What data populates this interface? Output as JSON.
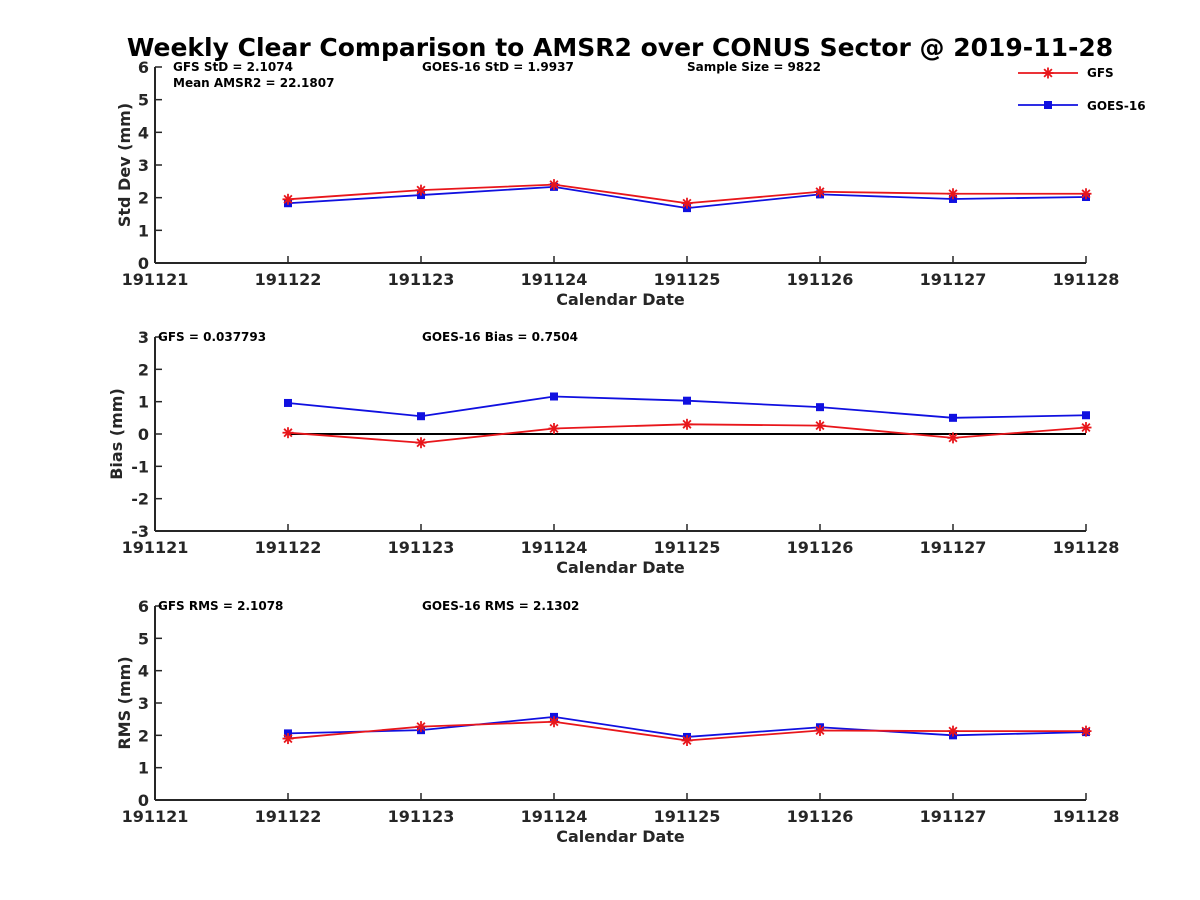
{
  "title": "Weekly Clear Comparison to AMSR2 over CONUS Sector @ 2019-11-28",
  "colors": {
    "gfs": "#e8161b",
    "goes16": "#1010e0",
    "zero_line": "#000000"
  },
  "legend": {
    "placement": "top-right",
    "entries": [
      {
        "label": "GFS",
        "marker": "asterisk",
        "color": "#e8161b"
      },
      {
        "label": "GOES-16",
        "marker": "square",
        "color": "#1010e0"
      }
    ]
  },
  "chart_data": [
    {
      "type": "line",
      "xlabel": "Calendar Date",
      "ylabel": "Std Dev (mm)",
      "ylim": [
        0,
        6
      ],
      "yticks": [
        "0",
        "1",
        "2",
        "3",
        "4",
        "5",
        "6"
      ],
      "categories": [
        "191121",
        "191122",
        "191123",
        "191124",
        "191125",
        "191126",
        "191127",
        "191128"
      ],
      "annotations": [
        "GFS StD = 2.1074",
        "GOES-16 StD = 1.9937",
        "Sample Size = 9822",
        "Mean AMSR2 = 22.1807"
      ],
      "zero_line": false,
      "series": [
        {
          "name": "GFS",
          "x": [
            "191122",
            "191123",
            "191124",
            "191125",
            "191126",
            "191127",
            "191128"
          ],
          "values": [
            1.95,
            2.23,
            2.4,
            1.83,
            2.18,
            2.12,
            2.12
          ]
        },
        {
          "name": "GOES-16",
          "x": [
            "191122",
            "191123",
            "191124",
            "191125",
            "191126",
            "191127",
            "191128"
          ],
          "values": [
            1.83,
            2.08,
            2.33,
            1.68,
            2.1,
            1.96,
            2.02
          ]
        }
      ]
    },
    {
      "type": "line",
      "xlabel": "Calendar Date",
      "ylabel": "Bias (mm)",
      "ylim": [
        -3,
        3
      ],
      "yticks": [
        "-3",
        "-2",
        "-1",
        "0",
        "1",
        "2",
        "3"
      ],
      "categories": [
        "191121",
        "191122",
        "191123",
        "191124",
        "191125",
        "191126",
        "191127",
        "191128"
      ],
      "annotations": [
        "GFS = 0.037793",
        "GOES-16 Bias  = 0.7504"
      ],
      "zero_line": true,
      "series": [
        {
          "name": "GFS",
          "x": [
            "191122",
            "191123",
            "191124",
            "191125",
            "191126",
            "191127",
            "191128"
          ],
          "values": [
            0.04,
            -0.27,
            0.17,
            0.3,
            0.26,
            -0.12,
            0.2
          ]
        },
        {
          "name": "GOES-16",
          "x": [
            "191122",
            "191123",
            "191124",
            "191125",
            "191126",
            "191127",
            "191128"
          ],
          "values": [
            0.96,
            0.55,
            1.16,
            1.03,
            0.83,
            0.5,
            0.58
          ]
        }
      ]
    },
    {
      "type": "line",
      "xlabel": "Calendar Date",
      "ylabel": "RMS (mm)",
      "ylim": [
        0,
        6
      ],
      "yticks": [
        "0",
        "1",
        "2",
        "3",
        "4",
        "5",
        "6"
      ],
      "categories": [
        "191121",
        "191122",
        "191123",
        "191124",
        "191125",
        "191126",
        "191127",
        "191128"
      ],
      "annotations": [
        "GFS RMS = 2.1078",
        "GOES-16 RMS = 2.1302"
      ],
      "zero_line": false,
      "series": [
        {
          "name": "GFS",
          "x": [
            "191122",
            "191123",
            "191124",
            "191125",
            "191126",
            "191127",
            "191128"
          ],
          "values": [
            1.9,
            2.27,
            2.42,
            1.84,
            2.15,
            2.13,
            2.13
          ]
        },
        {
          "name": "GOES-16",
          "x": [
            "191122",
            "191123",
            "191124",
            "191125",
            "191126",
            "191127",
            "191128"
          ],
          "values": [
            2.06,
            2.16,
            2.57,
            1.95,
            2.25,
            2.0,
            2.1
          ]
        }
      ]
    }
  ]
}
